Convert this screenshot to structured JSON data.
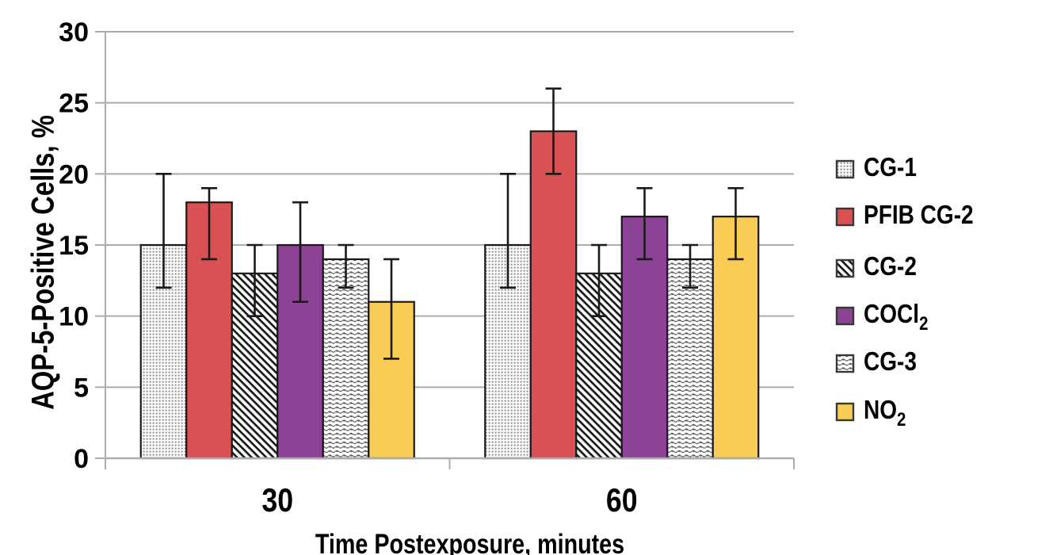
{
  "chart_data": {
    "type": "bar",
    "title": "",
    "xlabel": "Time Postexposure, minutes",
    "ylabel": "AQP-5-Positive Cells, %",
    "ylim": [
      0,
      30
    ],
    "yticks": [
      0,
      5,
      10,
      15,
      20,
      25,
      30
    ],
    "categories": [
      "30",
      "60"
    ],
    "grid": true,
    "legend_position": "right",
    "error_bars": true,
    "series": [
      {
        "name": "CG-1",
        "name_sub": "",
        "fill_style": "dots",
        "color": "#ffffff",
        "pattern_color": "#8a8a8a",
        "values": [
          15,
          15
        ],
        "error_low": [
          12,
          12
        ],
        "error_high": [
          20,
          20
        ]
      },
      {
        "name": "PFIB CG-2",
        "name_sub": "",
        "fill_style": "solid",
        "color": "#D95152",
        "pattern_color": "",
        "values": [
          18,
          23
        ],
        "error_low": [
          14,
          20
        ],
        "error_high": [
          19,
          26
        ]
      },
      {
        "name": "CG-2",
        "name_sub": "",
        "fill_style": "diagonal",
        "color": "#ffffff",
        "pattern_color": "#1a1a1a",
        "values": [
          13,
          13
        ],
        "error_low": [
          10,
          10
        ],
        "error_high": [
          15,
          15
        ]
      },
      {
        "name": "COCl",
        "name_sub": "2",
        "fill_style": "solid",
        "color": "#8C4295",
        "pattern_color": "",
        "values": [
          15,
          17
        ],
        "error_low": [
          11,
          14
        ],
        "error_high": [
          18,
          19
        ]
      },
      {
        "name": "CG-3",
        "name_sub": "",
        "fill_style": "waves",
        "color": "#ffffff",
        "pattern_color": "#5f5f5f",
        "values": [
          14,
          14
        ],
        "error_low": [
          12,
          12
        ],
        "error_high": [
          15,
          15
        ]
      },
      {
        "name": "NO",
        "name_sub": "2",
        "fill_style": "solid",
        "color": "#F9CD55",
        "pattern_color": "",
        "values": [
          11,
          17
        ],
        "error_low": [
          7,
          14
        ],
        "error_high": [
          14,
          19
        ]
      }
    ],
    "style": {
      "gridline_color": "#ACACAC",
      "axis_color": "#ACACAC",
      "bar_border_color": "#1A1A1A",
      "error_bar_color": "#1A1A1A",
      "text_color": "#000000",
      "legend_swatch_border": "#383838"
    }
  }
}
